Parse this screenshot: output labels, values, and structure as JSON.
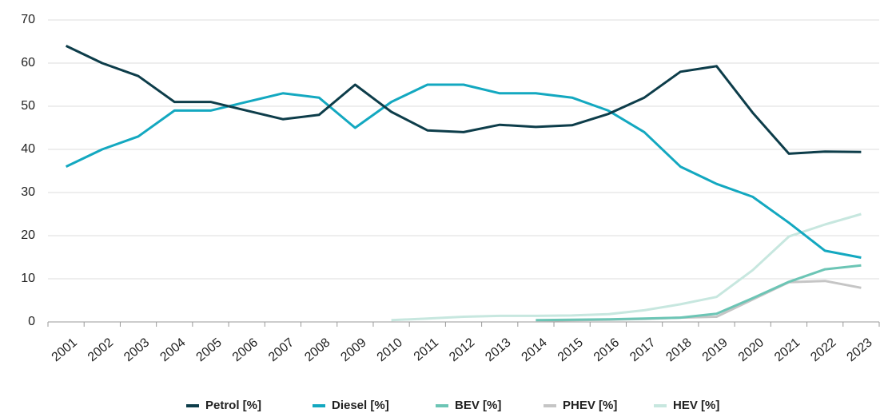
{
  "chart_data": {
    "type": "line",
    "categories": [
      "2001",
      "2002",
      "2003",
      "2004",
      "2005",
      "2006",
      "2007",
      "2008",
      "2009",
      "2010",
      "2011",
      "2012",
      "2013",
      "2014",
      "2015",
      "2016",
      "2017",
      "2018",
      "2019",
      "2020",
      "2021",
      "2022",
      "2023"
    ],
    "series": [
      {
        "name": "Petrol [%]",
        "color": "#0d3d4a",
        "values": [
          64,
          60,
          57,
          51,
          51,
          49,
          47,
          48,
          55,
          48.7,
          44.4,
          44,
          45.7,
          45.2,
          45.6,
          48.2,
          52,
          58,
          59.3,
          48.5,
          39,
          39.5,
          39.4
        ]
      },
      {
        "name": "Diesel [%]",
        "color": "#13a8c0",
        "values": [
          36,
          40,
          43,
          49,
          49,
          51,
          53,
          52,
          45,
          51,
          55,
          55,
          53,
          53,
          52,
          49,
          44,
          36,
          32,
          29,
          23,
          16.5,
          14.9
        ]
      },
      {
        "name": "BEV [%]",
        "color": "#6cc5b5",
        "values": [
          null,
          null,
          null,
          null,
          null,
          null,
          null,
          null,
          null,
          null,
          null,
          null,
          null,
          0.4,
          0.5,
          0.6,
          0.8,
          1.0,
          1.9,
          5.5,
          9.3,
          12.2,
          13.1
        ]
      },
      {
        "name": "PHEV [%]",
        "color": "#c5c5c5",
        "values": [
          null,
          null,
          null,
          null,
          null,
          null,
          null,
          null,
          null,
          null,
          null,
          null,
          null,
          0.3,
          0.4,
          0.5,
          0.7,
          1.0,
          1.2,
          5.2,
          9.2,
          9.5,
          7.9
        ]
      },
      {
        "name": "HEV [%]",
        "color": "#c7e7df",
        "values": [
          null,
          null,
          null,
          null,
          null,
          null,
          null,
          null,
          null,
          0.4,
          0.8,
          1.2,
          1.4,
          1.4,
          1.5,
          1.8,
          2.7,
          4.1,
          5.8,
          12,
          19.8,
          22.6,
          25
        ]
      }
    ],
    "ylim": [
      0,
      70
    ],
    "yticks": [
      0,
      10,
      20,
      30,
      40,
      50,
      60,
      70
    ],
    "grid": true
  }
}
